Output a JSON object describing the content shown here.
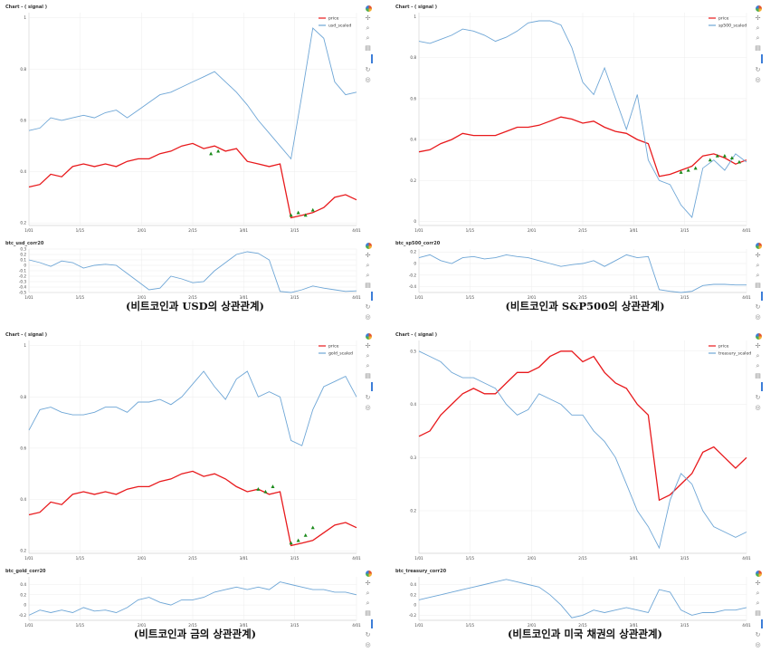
{
  "panels": [
    {
      "caption": "(비트코인과 USD의 상관관계)",
      "main": {
        "title": "Chart - ( signal )",
        "legend": [
          "price",
          "usd_scaled"
        ],
        "y_ticks": [
          "0.2",
          "0.4",
          "0.6",
          "0.8",
          "1"
        ],
        "x_ticks": [
          "1/01",
          "1/15",
          "2/01",
          "2/15",
          "3/01",
          "3/15",
          "4/01"
        ]
      },
      "corr": {
        "title": "btc_usd_corr20",
        "y_ticks": [
          "-0.5",
          "-0.4",
          "-0.3",
          "-0.2",
          "-0.1",
          "0",
          "0.1",
          "0.2",
          "0.3"
        ],
        "x_ticks": [
          "1/01",
          "1/15",
          "2/01",
          "2/15",
          "3/01",
          "3/15",
          "4/01"
        ]
      }
    },
    {
      "caption": "(비트코인과 S&P500의 상관관계)",
      "main": {
        "title": "Chart - ( signal )",
        "legend": [
          "price",
          "sp500_scaled"
        ],
        "y_ticks": [
          "0",
          "0.2",
          "0.4",
          "0.6",
          "0.8",
          "1"
        ],
        "x_ticks": [
          "1/01",
          "1/15",
          "2/01",
          "2/15",
          "3/01",
          "3/15",
          "4/01"
        ]
      },
      "corr": {
        "title": "btc_sp500_corr20",
        "y_ticks": [
          "-0.4",
          "-0.2",
          "0",
          "0.2"
        ],
        "x_ticks": [
          "1/01",
          "1/15",
          "2/01",
          "2/15",
          "3/01",
          "3/15",
          "4/01"
        ]
      }
    },
    {
      "caption": "(비트코인과 금의 상관관계)",
      "main": {
        "title": "Chart - ( signal )",
        "legend": [
          "price",
          "gold_scaled"
        ],
        "y_ticks": [
          "0.2",
          "0.4",
          "0.6",
          "0.8",
          "1"
        ],
        "x_ticks": [
          "1/01",
          "1/15",
          "2/01",
          "2/15",
          "3/01",
          "3/15",
          "4/01"
        ]
      },
      "corr": {
        "title": "btc_gold_corr20",
        "y_ticks": [
          "-0.2",
          "0",
          "0.2",
          "0.4"
        ],
        "x_ticks": [
          "1/01",
          "1/15",
          "2/01",
          "2/15",
          "3/01",
          "3/15",
          "4/01"
        ]
      }
    },
    {
      "caption": "(비트코인과 미국 채권의 상관관계)",
      "main": {
        "title": "Chart - ( signal )",
        "legend": [
          "price",
          "treasury_scaled"
        ],
        "y_ticks": [
          "0.2",
          "0.3",
          "0.4",
          "0.5"
        ],
        "x_ticks": [
          "1/01",
          "1/15",
          "2/01",
          "2/15",
          "3/01",
          "3/15",
          "4/01"
        ]
      },
      "corr": {
        "title": "btc_treasury_corr20",
        "y_ticks": [
          "-0.2",
          "0",
          "0.2",
          "0.4"
        ],
        "x_ticks": [
          "1/01",
          "1/15",
          "2/01",
          "2/15",
          "3/01",
          "3/15",
          "4/01"
        ]
      }
    }
  ],
  "colors": {
    "price": "#e8191c",
    "scaled": "#6ea6d6",
    "corr": "#6ea6d6",
    "signal_marker": "#1a8a1a",
    "grid": "#ececec"
  },
  "toolbar_icons": [
    "bokeh-logo-icon",
    "pan-icon",
    "box-zoom-icon",
    "wheel-zoom-icon",
    "save-icon",
    "reset-icon",
    "hover-icon"
  ],
  "chart_data": [
    {
      "type": "line",
      "title": "Chart - ( signal )",
      "x": [
        0,
        3,
        6,
        9,
        12,
        15,
        18,
        21,
        24,
        27,
        30,
        33,
        36,
        39,
        42,
        45,
        48,
        51,
        54,
        57,
        60,
        63,
        66,
        69,
        72,
        75,
        78,
        81,
        84,
        87,
        90
      ],
      "ylim": [
        0.19,
        1.02
      ],
      "series": [
        {
          "name": "price",
          "values": [
            0.34,
            0.35,
            0.39,
            0.38,
            0.42,
            0.43,
            0.42,
            0.43,
            0.42,
            0.44,
            0.45,
            0.45,
            0.47,
            0.48,
            0.5,
            0.51,
            0.49,
            0.5,
            0.48,
            0.49,
            0.44,
            0.43,
            0.42,
            0.43,
            0.22,
            0.23,
            0.24,
            0.26,
            0.3,
            0.31,
            0.29
          ]
        },
        {
          "name": "usd_scaled",
          "values": [
            0.56,
            0.57,
            0.61,
            0.6,
            0.61,
            0.62,
            0.61,
            0.63,
            0.64,
            0.61,
            0.64,
            0.67,
            0.7,
            0.71,
            0.73,
            0.75,
            0.77,
            0.79,
            0.75,
            0.71,
            0.66,
            0.6,
            0.55,
            0.5,
            0.45,
            0.7,
            0.96,
            0.92,
            0.75,
            0.7,
            0.71
          ]
        }
      ],
      "signal_markers": [
        [
          50,
          0.47
        ],
        [
          52,
          0.48
        ],
        [
          72,
          0.23
        ],
        [
          74,
          0.24
        ],
        [
          76,
          0.23
        ],
        [
          78,
          0.25
        ]
      ]
    },
    {
      "type": "line",
      "title": "btc_usd_corr20",
      "x": [
        0,
        3,
        6,
        9,
        12,
        15,
        18,
        21,
        24,
        27,
        30,
        33,
        36,
        39,
        42,
        45,
        48,
        51,
        54,
        57,
        60,
        63,
        66,
        69,
        72,
        75,
        78,
        81,
        84,
        87,
        90
      ],
      "ylim": [
        -0.5,
        0.3
      ],
      "series": [
        {
          "name": "btc_usd_corr20",
          "values": [
            0.1,
            0.05,
            -0.02,
            0.08,
            0.05,
            -0.05,
            0.0,
            0.02,
            0.0,
            -0.15,
            -0.3,
            -0.45,
            -0.42,
            -0.2,
            -0.25,
            -0.32,
            -0.3,
            -0.1,
            0.05,
            0.2,
            0.25,
            0.22,
            0.1,
            -0.48,
            -0.5,
            -0.45,
            -0.38,
            -0.42,
            -0.45,
            -0.48,
            -0.47
          ]
        }
      ]
    },
    {
      "type": "line",
      "title": "Chart - ( signal )",
      "x": [
        0,
        3,
        6,
        9,
        12,
        15,
        18,
        21,
        24,
        27,
        30,
        33,
        36,
        39,
        42,
        45,
        48,
        51,
        54,
        57,
        60,
        63,
        66,
        69,
        72,
        75,
        78,
        81,
        84,
        87,
        90
      ],
      "ylim": [
        -0.02,
        1.02
      ],
      "series": [
        {
          "name": "price",
          "values": [
            0.34,
            0.35,
            0.38,
            0.4,
            0.43,
            0.42,
            0.42,
            0.42,
            0.44,
            0.46,
            0.46,
            0.47,
            0.49,
            0.51,
            0.5,
            0.48,
            0.49,
            0.46,
            0.44,
            0.43,
            0.4,
            0.38,
            0.22,
            0.23,
            0.25,
            0.27,
            0.32,
            0.33,
            0.31,
            0.28,
            0.3
          ]
        },
        {
          "name": "sp500_scaled",
          "values": [
            0.88,
            0.87,
            0.89,
            0.91,
            0.94,
            0.93,
            0.91,
            0.88,
            0.9,
            0.93,
            0.97,
            0.98,
            0.98,
            0.96,
            0.85,
            0.68,
            0.62,
            0.75,
            0.6,
            0.45,
            0.62,
            0.3,
            0.2,
            0.18,
            0.08,
            0.02,
            0.26,
            0.3,
            0.25,
            0.33,
            0.29
          ]
        }
      ],
      "signal_markers": [
        [
          72,
          0.24
        ],
        [
          74,
          0.25
        ],
        [
          76,
          0.26
        ],
        [
          80,
          0.3
        ],
        [
          82,
          0.32
        ],
        [
          84,
          0.32
        ],
        [
          86,
          0.31
        ],
        [
          88,
          0.29
        ]
      ]
    },
    {
      "type": "line",
      "title": "btc_sp500_corr20",
      "x": [
        0,
        3,
        6,
        9,
        12,
        15,
        18,
        21,
        24,
        27,
        30,
        33,
        36,
        39,
        42,
        45,
        48,
        51,
        54,
        57,
        60,
        63,
        66,
        69,
        72,
        75,
        78,
        81,
        84,
        87,
        90
      ],
      "ylim": [
        -0.5,
        0.25
      ],
      "series": [
        {
          "name": "btc_sp500_corr20",
          "values": [
            0.1,
            0.15,
            0.05,
            0.0,
            0.1,
            0.12,
            0.08,
            0.1,
            0.15,
            0.12,
            0.1,
            0.05,
            0.0,
            -0.05,
            -0.02,
            0.0,
            0.05,
            -0.05,
            0.05,
            0.15,
            0.1,
            0.12,
            -0.45,
            -0.48,
            -0.5,
            -0.48,
            -0.38,
            -0.36,
            -0.36,
            -0.37,
            -0.37
          ]
        }
      ]
    },
    {
      "type": "line",
      "title": "Chart - ( signal )",
      "x": [
        0,
        3,
        6,
        9,
        12,
        15,
        18,
        21,
        24,
        27,
        30,
        33,
        36,
        39,
        42,
        45,
        48,
        51,
        54,
        57,
        60,
        63,
        66,
        69,
        72,
        75,
        78,
        81,
        84,
        87,
        90
      ],
      "ylim": [
        0.19,
        1.02
      ],
      "series": [
        {
          "name": "price",
          "values": [
            0.34,
            0.35,
            0.39,
            0.38,
            0.42,
            0.43,
            0.42,
            0.43,
            0.42,
            0.44,
            0.45,
            0.45,
            0.47,
            0.48,
            0.5,
            0.51,
            0.49,
            0.5,
            0.48,
            0.45,
            0.43,
            0.44,
            0.42,
            0.43,
            0.22,
            0.23,
            0.24,
            0.27,
            0.3,
            0.31,
            0.29
          ]
        },
        {
          "name": "gold_scaled",
          "values": [
            0.67,
            0.75,
            0.76,
            0.74,
            0.73,
            0.73,
            0.74,
            0.76,
            0.76,
            0.74,
            0.78,
            0.78,
            0.79,
            0.77,
            0.8,
            0.85,
            0.9,
            0.84,
            0.79,
            0.87,
            0.9,
            0.8,
            0.82,
            0.8,
            0.63,
            0.61,
            0.75,
            0.84,
            0.86,
            0.88,
            0.8
          ]
        }
      ],
      "signal_markers": [
        [
          63,
          0.44
        ],
        [
          65,
          0.43
        ],
        [
          67,
          0.45
        ],
        [
          72,
          0.23
        ],
        [
          74,
          0.24
        ],
        [
          76,
          0.26
        ],
        [
          78,
          0.29
        ]
      ]
    },
    {
      "type": "line",
      "title": "btc_gold_corr20",
      "x": [
        0,
        3,
        6,
        9,
        12,
        15,
        18,
        21,
        24,
        27,
        30,
        33,
        36,
        39,
        42,
        45,
        48,
        51,
        54,
        57,
        60,
        63,
        66,
        69,
        72,
        75,
        78,
        81,
        84,
        87,
        90
      ],
      "ylim": [
        -0.3,
        0.55
      ],
      "series": [
        {
          "name": "btc_gold_corr20",
          "values": [
            -0.2,
            -0.1,
            -0.15,
            -0.1,
            -0.15,
            -0.05,
            -0.12,
            -0.1,
            -0.15,
            -0.05,
            0.1,
            0.15,
            0.05,
            0.0,
            0.1,
            0.1,
            0.15,
            0.25,
            0.3,
            0.35,
            0.3,
            0.35,
            0.3,
            0.45,
            0.4,
            0.35,
            0.3,
            0.3,
            0.25,
            0.25,
            0.2
          ]
        }
      ]
    },
    {
      "type": "line",
      "title": "Chart - ( signal )",
      "x": [
        0,
        3,
        6,
        9,
        12,
        15,
        18,
        21,
        24,
        27,
        30,
        33,
        36,
        39,
        42,
        45,
        48,
        51,
        54,
        57,
        60,
        63,
        66,
        69,
        72,
        75,
        78,
        81,
        84,
        87,
        90
      ],
      "ylim": [
        0.12,
        0.52
      ],
      "series": [
        {
          "name": "price",
          "values": [
            0.34,
            0.35,
            0.38,
            0.4,
            0.42,
            0.43,
            0.42,
            0.42,
            0.44,
            0.46,
            0.46,
            0.47,
            0.49,
            0.5,
            0.5,
            0.48,
            0.49,
            0.46,
            0.44,
            0.43,
            0.4,
            0.38,
            0.22,
            0.23,
            0.25,
            0.27,
            0.31,
            0.32,
            0.3,
            0.28,
            0.3
          ]
        },
        {
          "name": "treasury_scaled",
          "values": [
            0.5,
            0.49,
            0.48,
            0.46,
            0.45,
            0.45,
            0.44,
            0.43,
            0.4,
            0.38,
            0.39,
            0.42,
            0.41,
            0.4,
            0.38,
            0.38,
            0.35,
            0.33,
            0.3,
            0.25,
            0.2,
            0.17,
            0.13,
            0.22,
            0.27,
            0.25,
            0.2,
            0.17,
            0.16,
            0.15,
            0.16
          ]
        }
      ]
    },
    {
      "type": "line",
      "title": "btc_treasury_corr20",
      "x": [
        0,
        3,
        6,
        9,
        12,
        15,
        18,
        21,
        24,
        27,
        30,
        33,
        36,
        39,
        42,
        45,
        48,
        51,
        54,
        57,
        60,
        63,
        66,
        69,
        72,
        75,
        78,
        81,
        84,
        87,
        90
      ],
      "ylim": [
        -0.3,
        0.55
      ],
      "series": [
        {
          "name": "btc_treasury_corr20",
          "values": [
            0.1,
            0.15,
            0.2,
            0.25,
            0.3,
            0.35,
            0.4,
            0.45,
            0.5,
            0.45,
            0.4,
            0.35,
            0.2,
            0.0,
            -0.25,
            -0.2,
            -0.1,
            -0.15,
            -0.1,
            -0.05,
            -0.1,
            -0.15,
            0.3,
            0.25,
            -0.1,
            -0.2,
            -0.15,
            -0.15,
            -0.1,
            -0.1,
            -0.05
          ]
        }
      ]
    }
  ]
}
